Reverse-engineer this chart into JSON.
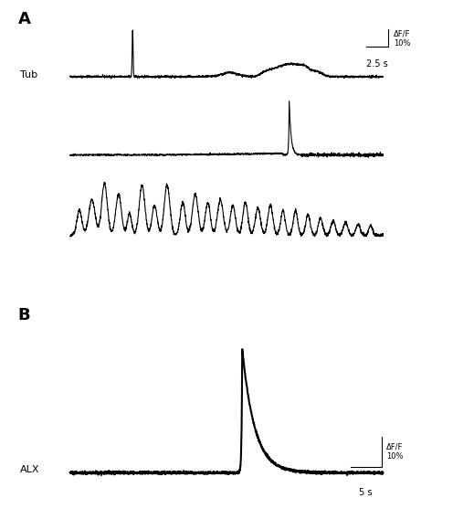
{
  "fig_width": 4.96,
  "fig_height": 5.8,
  "dpi": 100,
  "background_color": "#ffffff",
  "label_A": "A",
  "label_B": "B",
  "label_tub": "Tub",
  "label_alx": "ALX",
  "scale_bar_A_time": "2.5 s",
  "scale_bar_B_time": "5 s",
  "trace_color": "#000000",
  "trace_lw": 0.8,
  "trace_lw_B": 1.5
}
